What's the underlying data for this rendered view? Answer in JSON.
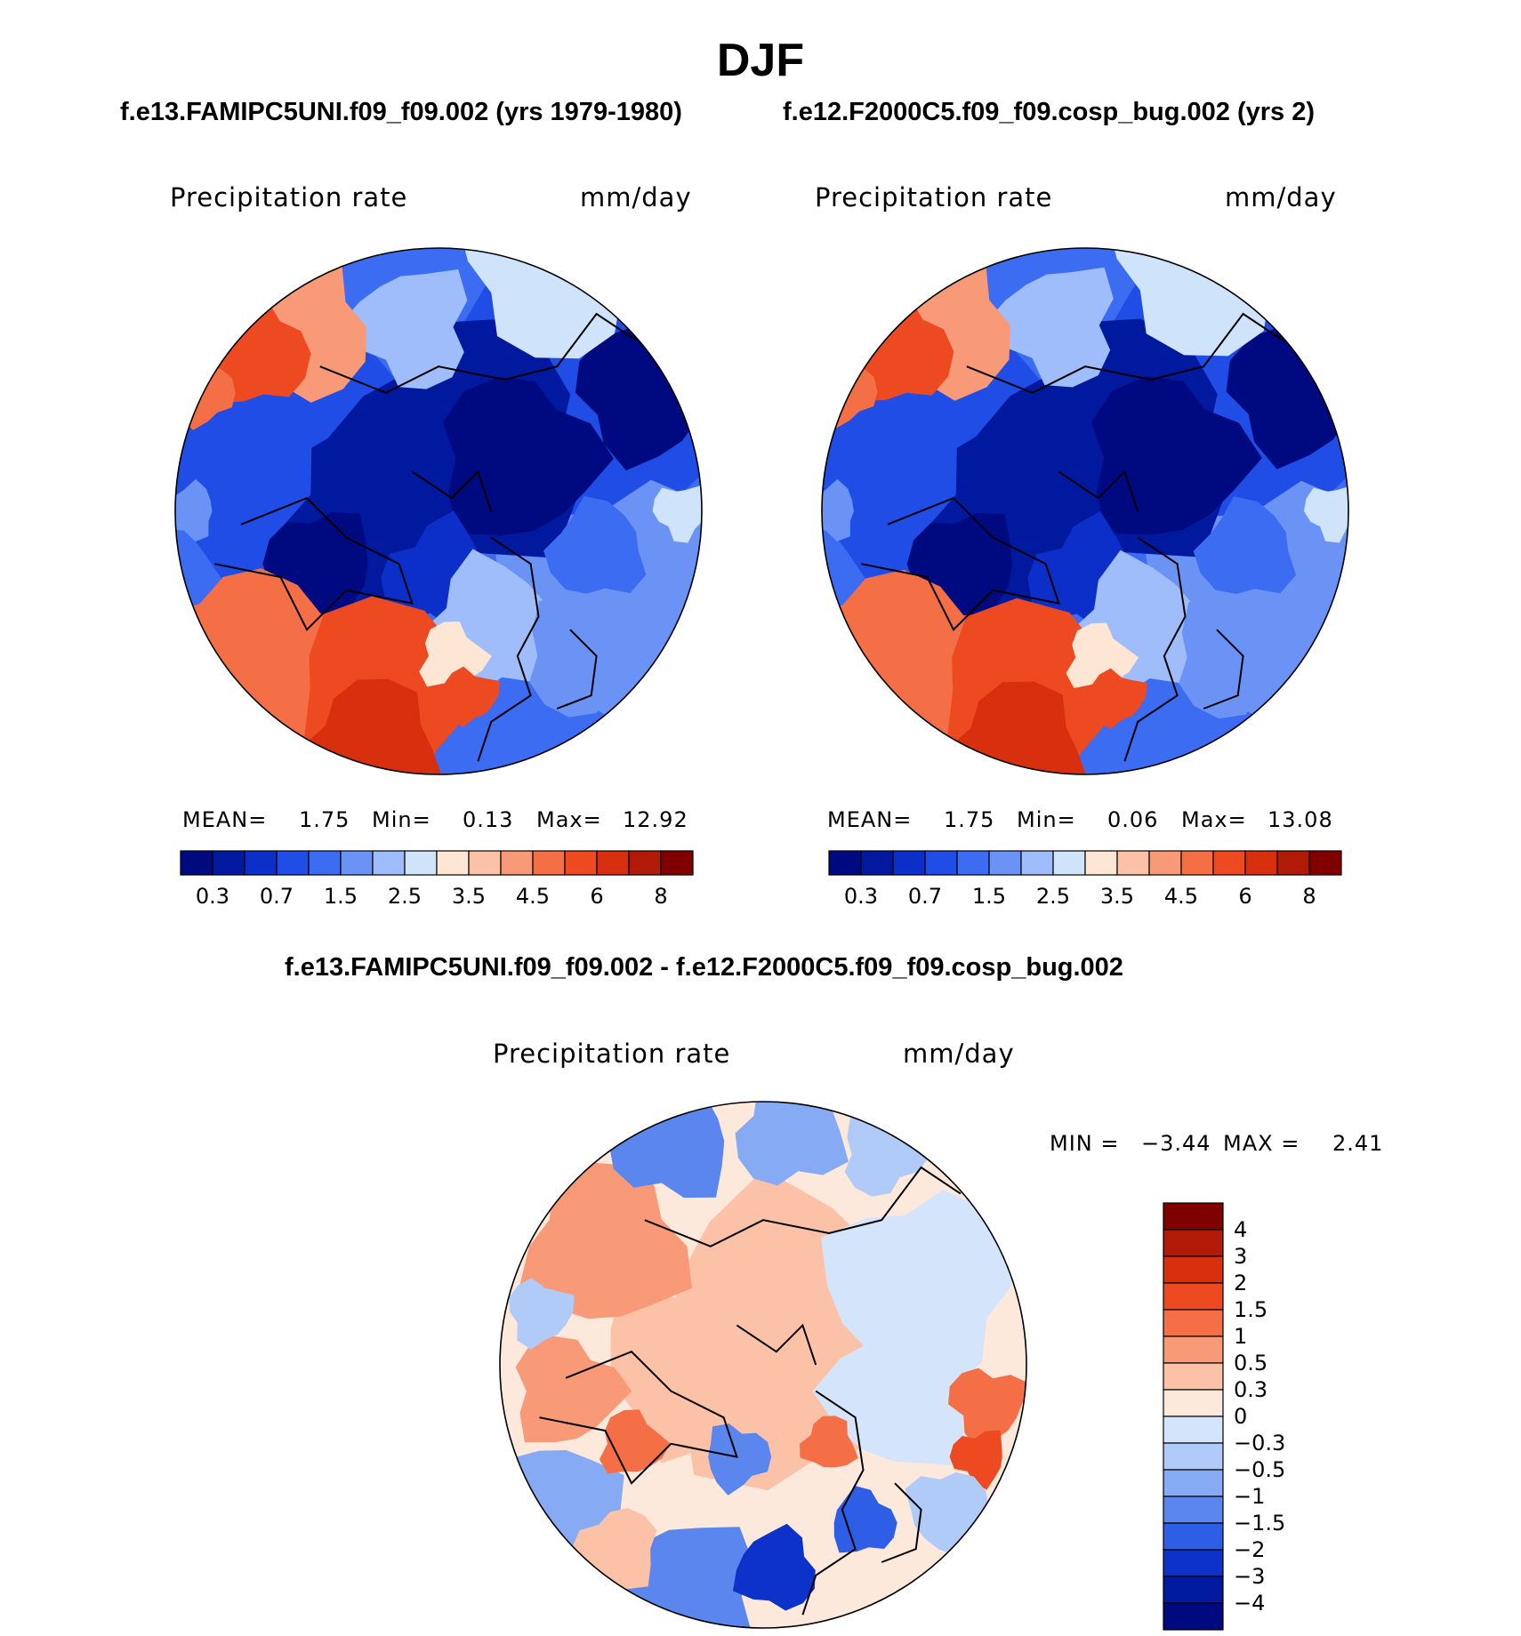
{
  "figure": {
    "season": "DJF",
    "case1_title": "f.e13.FAMIPC5UNI.f09_f09.002 (yrs 1979-1980)",
    "case2_title": "f.e12.F2000C5.f09_f09.cosp_bug.002 (yrs 2)",
    "diff_title": "f.e13.FAMIPC5UNI.f09_f09.002 - f.e12.F2000C5.f09_f09.cosp_bug.002"
  },
  "chart_data": [
    {
      "type": "heatmap",
      "projection": "north-polar-stereographic",
      "title": "f.e13.FAMIPC5UNI.f09_f09.002 (yrs 1979-1980)",
      "variable": "Precipitation rate",
      "units": "mm/day",
      "stats": {
        "mean_label": "MEAN=",
        "mean": "1.75",
        "min_label": "Min=",
        "min": "0.13",
        "max_label": "Max=",
        "max": "12.92"
      },
      "levels": [
        "0.3",
        "0.7",
        "1.5",
        "2.5",
        "3.5",
        "4.5",
        "6",
        "8"
      ],
      "colors": [
        "#000a80",
        "#00199e",
        "#0d2fc9",
        "#1f4de6",
        "#3b6cf2",
        "#6a93f5",
        "#9ebdfa",
        "#cfe3fb",
        "#fde6d4",
        "#fbc2a8",
        "#f89a77",
        "#f46f46",
        "#ed4a22",
        "#d8300f",
        "#b11a06",
        "#800000"
      ]
    },
    {
      "type": "heatmap",
      "projection": "north-polar-stereographic",
      "title": "f.e12.F2000C5.f09_f09.cosp_bug.002 (yrs 2)",
      "variable": "Precipitation rate",
      "units": "mm/day",
      "stats": {
        "mean_label": "MEAN=",
        "mean": "1.75",
        "min_label": "Min=",
        "min": "0.06",
        "max_label": "Max=",
        "max": "13.08"
      },
      "levels": [
        "0.3",
        "0.7",
        "1.5",
        "2.5",
        "3.5",
        "4.5",
        "6",
        "8"
      ],
      "colors": [
        "#000a80",
        "#00199e",
        "#0d2fc9",
        "#1f4de6",
        "#3b6cf2",
        "#6a93f5",
        "#9ebdfa",
        "#cfe3fb",
        "#fde6d4",
        "#fbc2a8",
        "#f89a77",
        "#f46f46",
        "#ed4a22",
        "#d8300f",
        "#b11a06",
        "#800000"
      ]
    },
    {
      "type": "heatmap",
      "projection": "north-polar-stereographic",
      "title": "f.e13.FAMIPC5UNI.f09_f09.002 - f.e12.F2000C5.f09_f09.cosp_bug.002",
      "variable": "Precipitation rate",
      "units": "mm/day",
      "stats": {
        "min_label": "MIN =",
        "min": "−3.44",
        "max_label": "MAX =",
        "max": "2.41"
      },
      "levels": [
        "4",
        "3",
        "2",
        "1.5",
        "1",
        "0.5",
        "0.3",
        "0",
        "−0.3",
        "−0.5",
        "−1",
        "−1.5",
        "−2",
        "−3",
        "−4"
      ],
      "colors": [
        "#800000",
        "#b11a06",
        "#d8300f",
        "#ed4a22",
        "#f46f46",
        "#f89a77",
        "#fbc2a8",
        "#fde9dc",
        "#d4e5fb",
        "#b0cbf7",
        "#86aaf3",
        "#5a86ee",
        "#2e5ee6",
        "#0d32c9",
        "#001aa0",
        "#000a80"
      ]
    }
  ]
}
